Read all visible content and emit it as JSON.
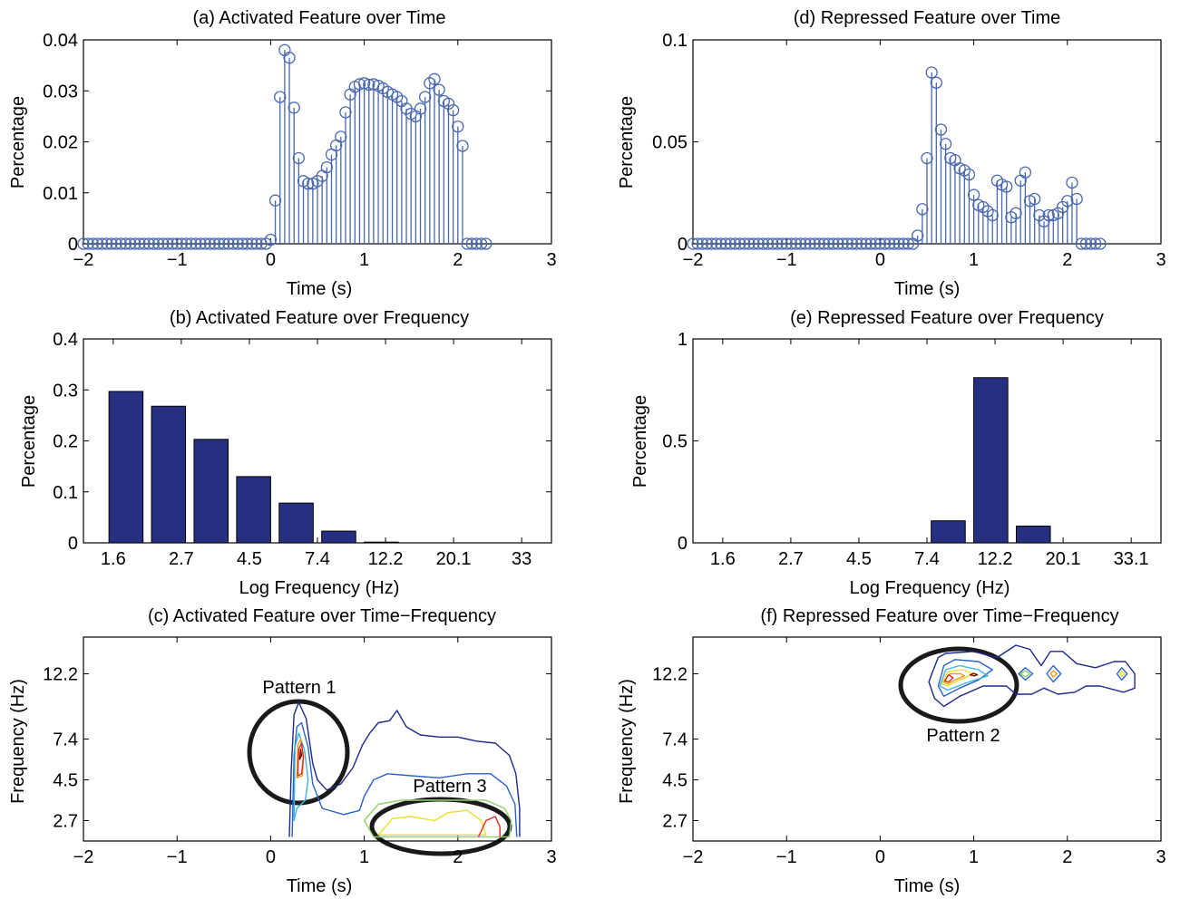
{
  "colors": {
    "stem": "#4a68b0",
    "bar_fill": "#262f80",
    "bar_edge": "#000000",
    "axis": "#000000",
    "annotation": "#1a1a1a",
    "contour_levels": [
      "#1b2a8c",
      "#2a62c8",
      "#39b6e0",
      "#8fd36a",
      "#e9e22a",
      "#f39c1e",
      "#e02a1e",
      "#7a0a0a"
    ]
  },
  "chart_data": [
    {
      "id": "a",
      "type": "stem",
      "title": "(a) Activated Feature over Time",
      "xlabel": "Time (s)",
      "ylabel": "Percentage",
      "xlim": [
        -2,
        3
      ],
      "ylim": [
        0,
        0.04
      ],
      "xticks": [
        "−2",
        "−1",
        "0",
        "1",
        "2",
        "3"
      ],
      "yticks": [
        "0",
        "0.01",
        "0.02",
        "0.03",
        "0.04"
      ],
      "x_start": -2,
      "x_step": 0.05,
      "values": [
        0,
        0,
        0,
        0,
        0,
        0,
        0,
        0,
        0,
        0,
        0,
        0,
        0,
        0,
        0,
        0,
        0,
        0,
        0,
        0,
        0,
        0,
        0,
        0,
        0,
        0,
        0,
        0,
        0,
        0,
        0,
        0,
        0,
        0,
        0,
        0,
        0,
        0,
        0,
        0,
        0.0008,
        0.0085,
        0.0288,
        0.038,
        0.0365,
        0.0267,
        0.0168,
        0.0123,
        0.0118,
        0.0118,
        0.0123,
        0.0133,
        0.015,
        0.0175,
        0.0193,
        0.021,
        0.0258,
        0.0293,
        0.0308,
        0.0313,
        0.0315,
        0.0312,
        0.0313,
        0.031,
        0.0305,
        0.0298,
        0.0293,
        0.0288,
        0.028,
        0.0265,
        0.0255,
        0.025,
        0.0265,
        0.0288,
        0.0315,
        0.0323,
        0.0302,
        0.028,
        0.0275,
        0.0262,
        0.023,
        0.0192,
        0,
        0,
        0,
        0,
        0
      ]
    },
    {
      "id": "d",
      "type": "stem",
      "title": "(d) Repressed Feature over Time",
      "xlabel": "Time (s)",
      "ylabel": "Percentage",
      "xlim": [
        -2,
        3
      ],
      "ylim": [
        0,
        0.1
      ],
      "xticks": [
        "−2",
        "−1",
        "0",
        "1",
        "2",
        "3"
      ],
      "yticks": [
        "0",
        "0.05",
        "0.1"
      ],
      "x_start": -2,
      "x_step": 0.05,
      "values": [
        0,
        0,
        0,
        0,
        0,
        0,
        0,
        0,
        0,
        0,
        0,
        0,
        0,
        0,
        0,
        0,
        0,
        0,
        0,
        0,
        0,
        0,
        0,
        0,
        0,
        0,
        0,
        0,
        0,
        0,
        0,
        0,
        0,
        0,
        0,
        0,
        0,
        0,
        0,
        0,
        0,
        0,
        0,
        0,
        0,
        0,
        0,
        0,
        0.004,
        0.017,
        0.042,
        0.084,
        0.079,
        0.056,
        0.049,
        0.042,
        0.041,
        0.037,
        0.036,
        0.034,
        0.024,
        0.019,
        0.018,
        0.016,
        0.014,
        0.031,
        0.029,
        0.028,
        0.013,
        0.015,
        0.031,
        0.035,
        0.021,
        0.022,
        0.014,
        0.011,
        0.014,
        0.014,
        0.015,
        0.018,
        0.021,
        0.03,
        0.022,
        0,
        0,
        0,
        0,
        0
      ]
    },
    {
      "id": "b",
      "type": "bar",
      "title": "(b) Activated Feature over Frequency",
      "xlabel": "Log Frequency (Hz)",
      "ylabel": "Percentage",
      "xlim": [
        0,
        11
      ],
      "ylim": [
        0,
        0.4
      ],
      "xticks": [
        "1.6",
        "2.7",
        "4.5",
        "7.4",
        "12.2",
        "20.1",
        "33"
      ],
      "yticks": [
        "0",
        "0.1",
        "0.2",
        "0.3",
        "0.4"
      ],
      "bar_x": [
        1,
        2,
        3,
        4,
        5,
        6,
        7,
        8,
        9,
        10
      ],
      "values": [
        0.297,
        0.268,
        0.203,
        0.13,
        0.078,
        0.023,
        0.0015,
        0,
        0,
        0
      ]
    },
    {
      "id": "e",
      "type": "bar",
      "title": "(e) Repressed Feature over Frequency",
      "xlabel": "Log Frequency (Hz)",
      "ylabel": "Percentage",
      "xlim": [
        0,
        11
      ],
      "ylim": [
        0,
        1
      ],
      "xticks": [
        "1.6",
        "2.7",
        "4.5",
        "7.4",
        "12.2",
        "20.1",
        "33.1"
      ],
      "yticks": [
        "0",
        "0.5",
        "1"
      ],
      "bar_x": [
        1,
        2,
        3,
        4,
        5,
        6,
        7,
        8,
        9,
        10
      ],
      "values": [
        0,
        0,
        0,
        0,
        0,
        0.108,
        0.81,
        0.082,
        0,
        0
      ]
    },
    {
      "id": "c",
      "type": "contour",
      "title": "(c) Activated Feature over Time−Frequency",
      "xlabel": "Time (s)",
      "ylabel": "Frequency (Hz)",
      "xlim": [
        -2,
        3
      ],
      "ylim": [
        0,
        10
      ],
      "xticks": [
        "−2",
        "−1",
        "0",
        "1",
        "2",
        "3"
      ],
      "yticks": [
        "2.7",
        "4.5",
        "7.4",
        "12.2"
      ],
      "annotations": [
        "Pattern 1",
        "Pattern 3"
      ],
      "contours": [
        {
          "level": 0,
          "points": [
            [
              0.2,
              0.2
            ],
            [
              0.22,
              3.5
            ],
            [
              0.25,
              6.2
            ],
            [
              0.3,
              6.8
            ],
            [
              0.38,
              6.0
            ],
            [
              0.45,
              3.8
            ],
            [
              0.5,
              3.0
            ],
            [
              0.6,
              2.5
            ],
            [
              0.75,
              2.8
            ],
            [
              0.88,
              3.6
            ],
            [
              0.98,
              4.7
            ],
            [
              1.06,
              5.3
            ],
            [
              1.15,
              5.8
            ],
            [
              1.27,
              5.9
            ],
            [
              1.35,
              6.4
            ],
            [
              1.45,
              5.6
            ],
            [
              1.6,
              5.2
            ],
            [
              1.8,
              5.1
            ],
            [
              2.0,
              5.1
            ],
            [
              2.2,
              4.9
            ],
            [
              2.4,
              4.8
            ],
            [
              2.55,
              4.2
            ],
            [
              2.62,
              3.3
            ],
            [
              2.66,
              1.6
            ],
            [
              2.66,
              0.2
            ]
          ]
        },
        {
          "level": 1,
          "points": [
            [
              0.23,
              0.2
            ],
            [
              0.25,
              4.2
            ],
            [
              0.28,
              5.6
            ],
            [
              0.33,
              5.8
            ],
            [
              0.4,
              4.6
            ],
            [
              0.45,
              2.8
            ],
            [
              0.55,
              1.6
            ],
            [
              0.78,
              1.3
            ],
            [
              0.95,
              1.5
            ],
            [
              1.0,
              2.2
            ],
            [
              1.1,
              3.0
            ],
            [
              1.25,
              3.3
            ],
            [
              1.5,
              3.2
            ],
            [
              1.8,
              3.1
            ],
            [
              2.1,
              3.3
            ],
            [
              2.35,
              3.3
            ],
            [
              2.52,
              2.7
            ],
            [
              2.61,
              1.8
            ],
            [
              2.63,
              0.2
            ]
          ]
        },
        {
          "level": 2,
          "points": [
            [
              0.25,
              1.0
            ],
            [
              0.26,
              4.6
            ],
            [
              0.3,
              5.3
            ],
            [
              0.36,
              4.5
            ],
            [
              0.4,
              3.0
            ],
            [
              0.37,
              2.0
            ],
            [
              0.28,
              1.6
            ]
          ]
        },
        {
          "level": 3,
          "points": [
            [
              1.0,
              1.0
            ],
            [
              1.15,
              1.8
            ],
            [
              1.4,
              2.0
            ],
            [
              1.7,
              2.0
            ],
            [
              2.0,
              2.0
            ],
            [
              2.3,
              2.0
            ],
            [
              2.5,
              1.6
            ],
            [
              2.57,
              1.0
            ],
            [
              2.55,
              0.2
            ],
            [
              1.1,
              0.2
            ]
          ]
        },
        {
          "level": 4,
          "points": [
            [
              1.15,
              0.3
            ],
            [
              1.3,
              1.1
            ],
            [
              1.5,
              1.2
            ],
            [
              1.75,
              1.0
            ],
            [
              1.9,
              1.4
            ],
            [
              2.1,
              1.5
            ],
            [
              2.25,
              1.0
            ],
            [
              2.3,
              0.3
            ]
          ]
        },
        {
          "level": 5,
          "points": [
            [
              0.28,
              3.1
            ],
            [
              0.29,
              4.7
            ],
            [
              0.32,
              5.0
            ],
            [
              0.35,
              4.2
            ],
            [
              0.34,
              3.2
            ]
          ]
        },
        {
          "level": 6,
          "points": [
            [
              2.22,
              0.2
            ],
            [
              2.3,
              1.0
            ],
            [
              2.4,
              1.2
            ],
            [
              2.45,
              0.7
            ],
            [
              2.45,
              0.2
            ]
          ]
        },
        {
          "level": 6,
          "points": [
            [
              0.29,
              3.2
            ],
            [
              0.3,
              4.5
            ],
            [
              0.33,
              4.8
            ],
            [
              0.35,
              4.1
            ],
            [
              0.33,
              3.3
            ]
          ]
        },
        {
          "level": 7,
          "points": [
            [
              0.31,
              4.0
            ],
            [
              0.32,
              4.5
            ],
            [
              0.33,
              4.2
            ]
          ]
        }
      ]
    },
    {
      "id": "f",
      "type": "contour",
      "title": "(f) Repressed Feature over Time−Frequency",
      "xlabel": "Time (s)",
      "ylabel": "Frequency (Hz)",
      "xlim": [
        -2,
        3
      ],
      "ylim": [
        0,
        10
      ],
      "xticks": [
        "−2",
        "−1",
        "0",
        "1",
        "2",
        "3"
      ],
      "yticks": [
        "2.7",
        "4.5",
        "7.4",
        "12.2"
      ],
      "annotations": [
        "Pattern 2"
      ],
      "contours": [
        {
          "level": 0,
          "points": [
            [
              0.52,
              7.8
            ],
            [
              0.56,
              8.3
            ],
            [
              0.62,
              9.0
            ],
            [
              0.7,
              9.2
            ],
            [
              1.0,
              9.3
            ],
            [
              1.25,
              9.0
            ],
            [
              1.45,
              9.6
            ],
            [
              1.6,
              9.4
            ],
            [
              1.72,
              8.6
            ],
            [
              1.82,
              9.3
            ],
            [
              1.95,
              9.3
            ],
            [
              2.1,
              8.7
            ],
            [
              2.3,
              8.5
            ],
            [
              2.5,
              8.8
            ],
            [
              2.62,
              8.8
            ],
            [
              2.72,
              8.2
            ],
            [
              2.72,
              7.5
            ],
            [
              2.6,
              7.3
            ],
            [
              2.35,
              7.6
            ],
            [
              2.2,
              7.6
            ],
            [
              2.08,
              7.3
            ],
            [
              1.9,
              7.2
            ],
            [
              1.75,
              7.5
            ],
            [
              1.62,
              7.2
            ],
            [
              1.45,
              7.2
            ],
            [
              1.35,
              7.6
            ],
            [
              1.1,
              7.6
            ],
            [
              0.85,
              7.1
            ],
            [
              0.68,
              6.6
            ],
            [
              0.58,
              7.0
            ]
          ]
        },
        {
          "level": 1,
          "points": [
            [
              0.62,
              7.6
            ],
            [
              0.68,
              8.6
            ],
            [
              0.8,
              8.9
            ],
            [
              1.05,
              8.8
            ],
            [
              1.2,
              8.4
            ],
            [
              1.05,
              7.9
            ],
            [
              0.85,
              7.5
            ],
            [
              0.68,
              7.1
            ]
          ]
        },
        {
          "level": 2,
          "points": [
            [
              0.64,
              7.6
            ],
            [
              0.7,
              8.4
            ],
            [
              0.85,
              8.6
            ],
            [
              1.05,
              8.4
            ],
            [
              1.15,
              8.1
            ],
            [
              0.95,
              7.8
            ],
            [
              0.72,
              7.4
            ]
          ]
        },
        {
          "level": 1,
          "points": [
            [
              1.48,
              8.2
            ],
            [
              1.55,
              8.5
            ],
            [
              1.63,
              8.2
            ],
            [
              1.55,
              7.9
            ]
          ]
        },
        {
          "level": 3,
          "points": [
            [
              1.5,
              8.2
            ],
            [
              1.55,
              8.35
            ],
            [
              1.6,
              8.2
            ],
            [
              1.55,
              8.05
            ]
          ]
        },
        {
          "level": 1,
          "points": [
            [
              1.78,
              8.2
            ],
            [
              1.85,
              8.6
            ],
            [
              1.93,
              8.2
            ],
            [
              1.85,
              7.8
            ]
          ]
        },
        {
          "level": 5,
          "points": [
            [
              1.82,
              8.2
            ],
            [
              1.85,
              8.35
            ],
            [
              1.89,
              8.2
            ],
            [
              1.85,
              8.05
            ]
          ]
        },
        {
          "level": 1,
          "points": [
            [
              2.53,
              8.2
            ],
            [
              2.58,
              8.5
            ],
            [
              2.64,
              8.2
            ],
            [
              2.58,
              7.9
            ]
          ]
        },
        {
          "level": 4,
          "points": [
            [
              2.56,
              8.2
            ],
            [
              2.58,
              8.33
            ],
            [
              2.61,
              8.2
            ],
            [
              2.58,
              8.07
            ]
          ]
        },
        {
          "level": 4,
          "points": [
            [
              0.66,
              7.7
            ],
            [
              0.72,
              8.3
            ],
            [
              0.88,
              8.4
            ],
            [
              1.0,
              8.2
            ],
            [
              0.85,
              7.9
            ],
            [
              0.72,
              7.6
            ]
          ]
        },
        {
          "level": 5,
          "points": [
            [
              0.68,
              7.8
            ],
            [
              0.74,
              8.2
            ],
            [
              0.86,
              8.2
            ],
            [
              0.9,
              8.1
            ],
            [
              0.8,
              7.9
            ],
            [
              0.72,
              7.7
            ]
          ]
        },
        {
          "level": 6,
          "points": [
            [
              0.69,
              7.85
            ],
            [
              0.73,
              8.15
            ],
            [
              0.78,
              8.0
            ],
            [
              0.73,
              7.8
            ]
          ]
        },
        {
          "level": 7,
          "points": [
            [
              0.96,
              8.15
            ],
            [
              1.0,
              8.22
            ],
            [
              1.04,
              8.15
            ],
            [
              1.0,
              8.1
            ]
          ]
        }
      ]
    }
  ]
}
